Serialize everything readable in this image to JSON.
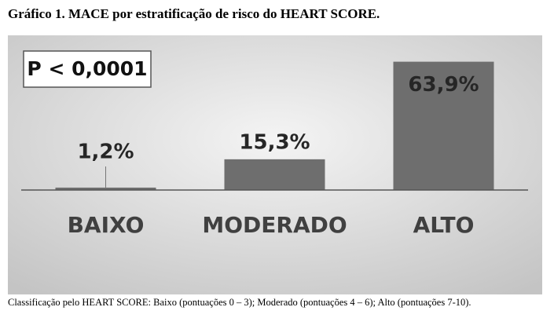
{
  "chart_data": {
    "type": "bar",
    "title": "Gráfico 1. MACE por estratificação de risco do HEART SCORE.",
    "annotation": "P < 0,0001",
    "caption": "Classificação pelo HEART SCORE: Baixo (pontuações 0 – 3); Moderado (pontuações 4 – 6); Alto (pontuações 7-10).",
    "categories": [
      "BAIXO",
      "MODERADO",
      "ALTO"
    ],
    "values": [
      1.2,
      15.3,
      63.9
    ],
    "value_labels": [
      "1,2%",
      "15,3%",
      "63,9%"
    ],
    "color": "#6e6e6e",
    "ylim": [
      0,
      70
    ]
  }
}
